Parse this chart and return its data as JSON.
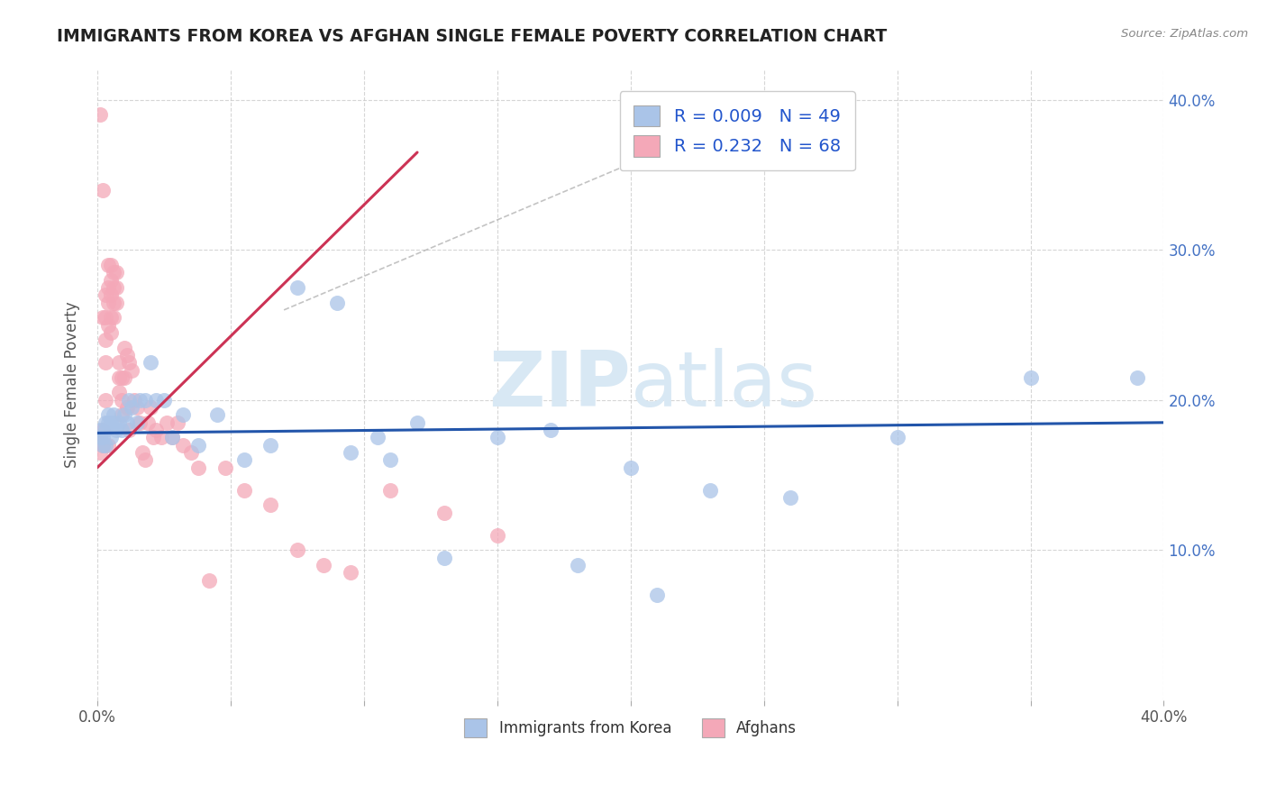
{
  "title": "IMMIGRANTS FROM KOREA VS AFGHAN SINGLE FEMALE POVERTY CORRELATION CHART",
  "source": "Source: ZipAtlas.com",
  "ylabel": "Single Female Poverty",
  "legend_label1": "Immigrants from Korea",
  "legend_label2": "Afghans",
  "r_korea": "0.009",
  "n_korea": "49",
  "r_afghan": "0.232",
  "n_afghan": "68",
  "xlim": [
    0.0,
    0.4
  ],
  "ylim": [
    0.0,
    0.42
  ],
  "ytick_vals": [
    0.1,
    0.2,
    0.3,
    0.4
  ],
  "ytick_labels": [
    "10.0%",
    "20.0%",
    "30.0%",
    "40.0%"
  ],
  "korea_color": "#aac4e8",
  "afghan_color": "#f4a8b8",
  "korea_line_color": "#2255aa",
  "afghan_line_color": "#cc3355",
  "watermark_color": "#d8e8f4",
  "korea_x": [
    0.001,
    0.001,
    0.002,
    0.002,
    0.003,
    0.003,
    0.003,
    0.004,
    0.004,
    0.005,
    0.005,
    0.006,
    0.006,
    0.007,
    0.008,
    0.009,
    0.01,
    0.011,
    0.012,
    0.013,
    0.015,
    0.016,
    0.018,
    0.02,
    0.022,
    0.025,
    0.028,
    0.032,
    0.038,
    0.045,
    0.055,
    0.065,
    0.075,
    0.09,
    0.105,
    0.12,
    0.15,
    0.17,
    0.2,
    0.23,
    0.26,
    0.3,
    0.35,
    0.39,
    0.095,
    0.11,
    0.13,
    0.18,
    0.21
  ],
  "korea_y": [
    0.18,
    0.175,
    0.175,
    0.17,
    0.185,
    0.18,
    0.17,
    0.19,
    0.185,
    0.185,
    0.175,
    0.19,
    0.185,
    0.18,
    0.185,
    0.18,
    0.19,
    0.185,
    0.2,
    0.195,
    0.185,
    0.2,
    0.2,
    0.225,
    0.2,
    0.2,
    0.175,
    0.19,
    0.17,
    0.19,
    0.16,
    0.17,
    0.275,
    0.265,
    0.175,
    0.185,
    0.175,
    0.18,
    0.155,
    0.14,
    0.135,
    0.175,
    0.215,
    0.215,
    0.165,
    0.16,
    0.095,
    0.09,
    0.07
  ],
  "afghan_x": [
    0.001,
    0.001,
    0.001,
    0.002,
    0.002,
    0.002,
    0.003,
    0.003,
    0.003,
    0.003,
    0.003,
    0.004,
    0.004,
    0.004,
    0.004,
    0.005,
    0.005,
    0.005,
    0.005,
    0.005,
    0.006,
    0.006,
    0.006,
    0.006,
    0.007,
    0.007,
    0.007,
    0.008,
    0.008,
    0.008,
    0.009,
    0.009,
    0.009,
    0.01,
    0.01,
    0.011,
    0.011,
    0.012,
    0.012,
    0.013,
    0.014,
    0.015,
    0.016,
    0.017,
    0.018,
    0.019,
    0.02,
    0.021,
    0.022,
    0.024,
    0.026,
    0.028,
    0.03,
    0.032,
    0.035,
    0.038,
    0.042,
    0.048,
    0.055,
    0.065,
    0.075,
    0.085,
    0.095,
    0.11,
    0.13,
    0.15,
    0.002,
    0.004
  ],
  "afghan_y": [
    0.39,
    0.175,
    0.165,
    0.34,
    0.255,
    0.17,
    0.27,
    0.255,
    0.24,
    0.225,
    0.2,
    0.29,
    0.275,
    0.265,
    0.25,
    0.29,
    0.28,
    0.27,
    0.255,
    0.245,
    0.285,
    0.275,
    0.265,
    0.255,
    0.285,
    0.275,
    0.265,
    0.225,
    0.215,
    0.205,
    0.215,
    0.2,
    0.19,
    0.235,
    0.215,
    0.23,
    0.195,
    0.225,
    0.18,
    0.22,
    0.2,
    0.195,
    0.185,
    0.165,
    0.16,
    0.185,
    0.195,
    0.175,
    0.18,
    0.175,
    0.185,
    0.175,
    0.185,
    0.17,
    0.165,
    0.155,
    0.08,
    0.155,
    0.14,
    0.13,
    0.1,
    0.09,
    0.085,
    0.14,
    0.125,
    0.11,
    0.18,
    0.17
  ],
  "korea_trend_x": [
    0.0,
    0.4
  ],
  "korea_trend_y": [
    0.178,
    0.185
  ],
  "afghan_trend_x": [
    0.0,
    0.12
  ],
  "afghan_trend_y": [
    0.155,
    0.365
  ],
  "dash_line_x": [
    0.07,
    0.25
  ],
  "dash_line_y": [
    0.26,
    0.395
  ]
}
